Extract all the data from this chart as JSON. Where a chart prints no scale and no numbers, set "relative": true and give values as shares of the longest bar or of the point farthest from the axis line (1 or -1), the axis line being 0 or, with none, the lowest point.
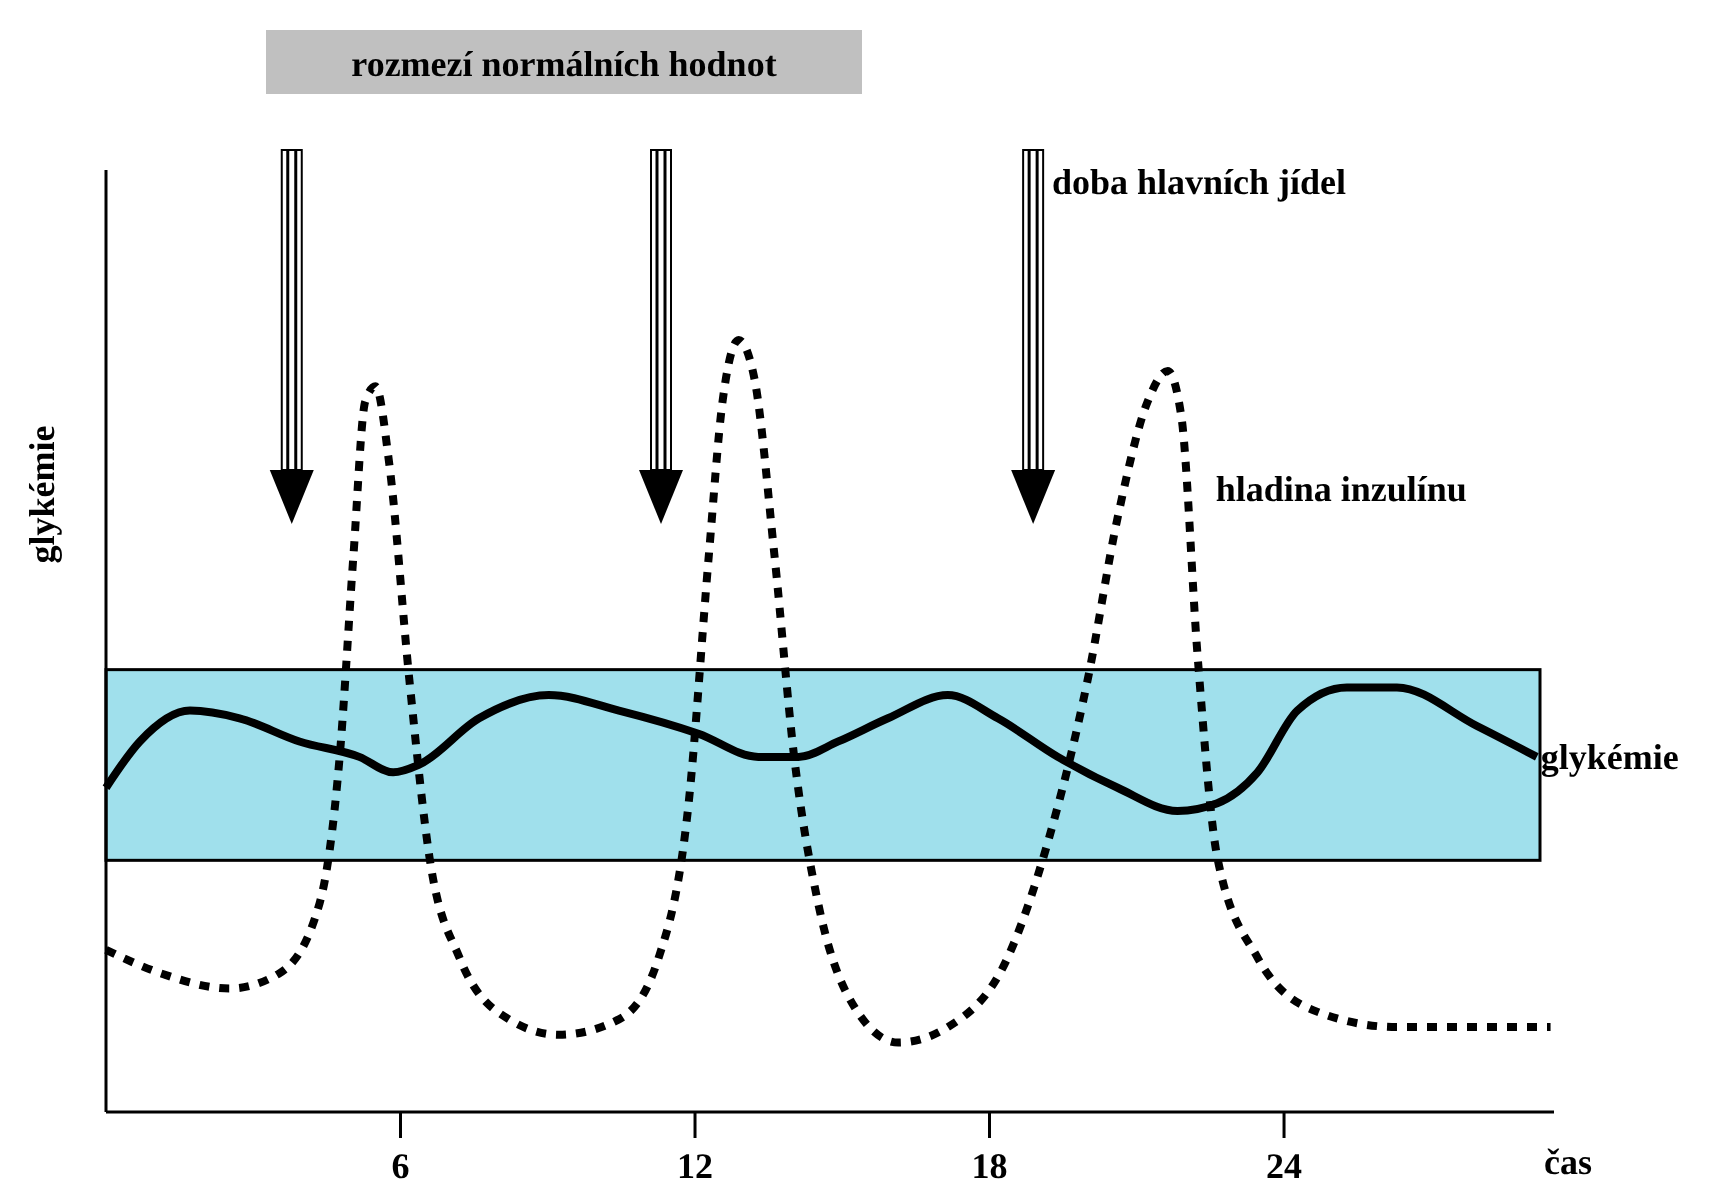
{
  "chart_data": {
    "type": "line",
    "relative": true,
    "xlabel": "čas",
    "ylabel": "glykémie",
    "xlim": [
      0,
      29.5
    ],
    "xticks": [
      6,
      12,
      18,
      24
    ],
    "legend": false,
    "grid": false,
    "marker": "none",
    "annotations": [
      "doba hlavních jídel",
      "rozmezí normálních hodnot"
    ],
    "bands": [
      {
        "axis": "y",
        "from": 0.326,
        "to": 0.573,
        "color": "#a0e0ec"
      }
    ],
    "series": [
      {
        "name": "glykémie",
        "color": "#000000",
        "line_style": "solid",
        "x": [
          0,
          0.69,
          1.71,
          2.72,
          3.94,
          5.16,
          5.85,
          6.38,
          7.6,
          9.02,
          10.45,
          12.07,
          13.29,
          14.11,
          14.92,
          15.93,
          17.15,
          18.17,
          19.39,
          20.61,
          21.83,
          22.64,
          23.46,
          24.27,
          25.28,
          26.3,
          27.93,
          29.15
        ],
        "values": [
          0.42,
          0.48,
          0.52,
          0.51,
          0.48,
          0.46,
          0.44,
          0.45,
          0.51,
          0.54,
          0.52,
          0.49,
          0.46,
          0.46,
          0.48,
          0.51,
          0.54,
          0.51,
          0.46,
          0.42,
          0.39,
          0.4,
          0.44,
          0.52,
          0.55,
          0.55,
          0.5,
          0.46
        ]
      },
      {
        "name": "hladina inzulínu",
        "color": "#000000",
        "line_style": "dotted",
        "x": [
          0,
          1.1,
          2.52,
          3.54,
          4.35,
          4.76,
          5.04,
          5.28,
          5.49,
          5.77,
          6.18,
          6.59,
          7.2,
          8.21,
          9.23,
          10.45,
          11.26,
          11.87,
          12.28,
          12.56,
          12.89,
          13.21,
          13.62,
          14.02,
          14.51,
          15.12,
          16.14,
          17.15,
          18.37,
          19.19,
          20,
          20.61,
          21.22,
          21.63,
          21.91,
          22.24,
          22.64,
          23.46,
          24.67,
          26.3,
          27.93,
          29.43
        ],
        "values": [
          0.21,
          0.18,
          0.16,
          0.18,
          0.27,
          0.46,
          0.72,
          0.92,
          0.94,
          0.84,
          0.56,
          0.33,
          0.2,
          0.12,
          0.1,
          0.12,
          0.2,
          0.4,
          0.72,
          0.92,
          1,
          0.95,
          0.72,
          0.46,
          0.27,
          0.15,
          0.09,
          0.11,
          0.2,
          0.35,
          0.56,
          0.77,
          0.92,
          0.96,
          0.9,
          0.59,
          0.33,
          0.2,
          0.13,
          0.11,
          0.11,
          0.11
        ]
      }
    ]
  }
}
